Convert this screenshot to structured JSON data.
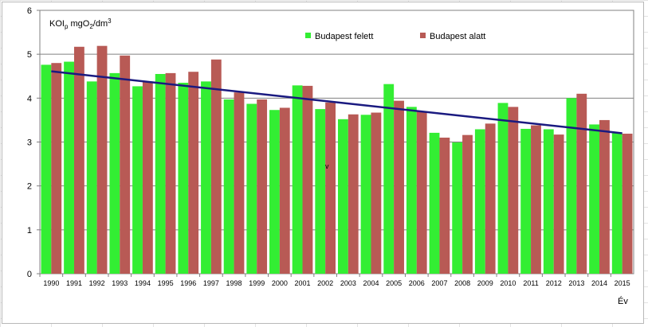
{
  "chart_data": {
    "type": "bar",
    "ylabel_parts": {
      "main": "KOI",
      "sub1": "p",
      "mid": " mgO",
      "sub2": "2",
      "tail": "/dm",
      "sup": "3"
    },
    "xlabel": "Év",
    "ylim": [
      0,
      6
    ],
    "yticks": [
      "0",
      "1",
      "2",
      "3",
      "4",
      "5",
      "6"
    ],
    "grid": true,
    "legend_placement": "top-center",
    "categories": [
      "1990",
      "1991",
      "1992",
      "1993",
      "1994",
      "1995",
      "1996",
      "1997",
      "1998",
      "1999",
      "2000",
      "2001",
      "2002",
      "2003",
      "2004",
      "2005",
      "2006",
      "2007",
      "2008",
      "2009",
      "2010",
      "2011",
      "2012",
      "2013",
      "2014",
      "2015"
    ],
    "series": [
      {
        "name": "Budapest felett",
        "color": "#33ee33",
        "values": [
          4.76,
          4.83,
          4.38,
          4.57,
          4.27,
          4.55,
          4.35,
          4.38,
          3.97,
          3.87,
          3.73,
          4.29,
          3.75,
          3.52,
          3.62,
          4.32,
          3.8,
          3.21,
          2.99,
          3.29,
          3.89,
          3.3,
          3.29,
          4.0,
          3.4,
          3.2
        ]
      },
      {
        "name": "Budapest alatt",
        "color": "#b85a55",
        "values": [
          4.8,
          5.17,
          5.19,
          4.97,
          4.38,
          4.57,
          4.6,
          4.88,
          4.13,
          3.97,
          3.78,
          4.28,
          3.9,
          3.63,
          3.67,
          3.94,
          3.7,
          3.1,
          3.16,
          3.42,
          3.8,
          3.38,
          3.17,
          4.1,
          3.5,
          3.19
        ]
      }
    ],
    "trendline": {
      "color": "#1a1a80",
      "start": 4.61,
      "end": 3.2
    },
    "annotation": "v"
  }
}
